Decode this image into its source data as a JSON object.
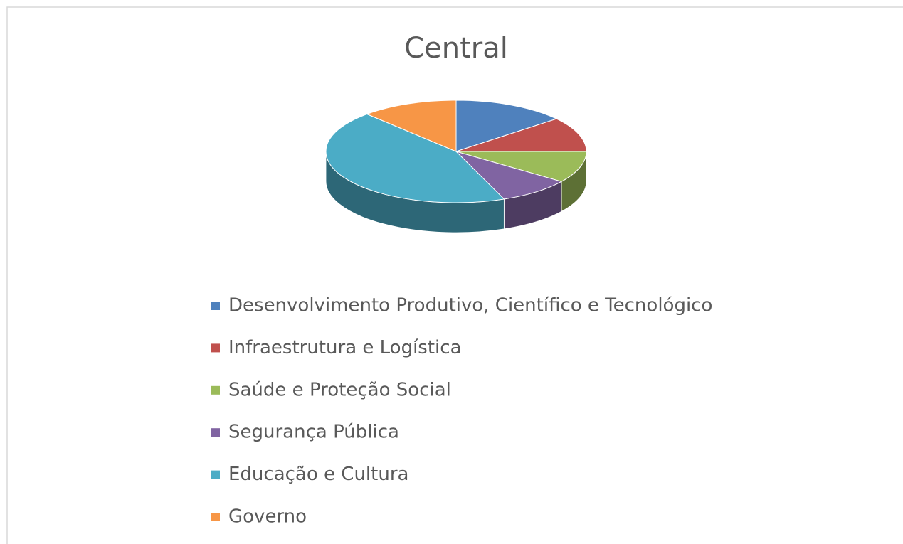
{
  "chart_data": {
    "type": "pie",
    "title": "Central",
    "categories": [
      "Desenvolvimento Produtivo, Científico e Tecnológico",
      "Infraestrutura e Logística",
      "Saúde e Proteção Social",
      "Segurança Pública",
      "Educação e Cultura",
      "Governo"
    ],
    "values": [
      14,
      11,
      10,
      9,
      44,
      12
    ],
    "colors": [
      "#4f81bd",
      "#c0504d",
      "#9bbb59",
      "#8064a2",
      "#4bacc6",
      "#f79646"
    ],
    "legend": "bottom"
  }
}
